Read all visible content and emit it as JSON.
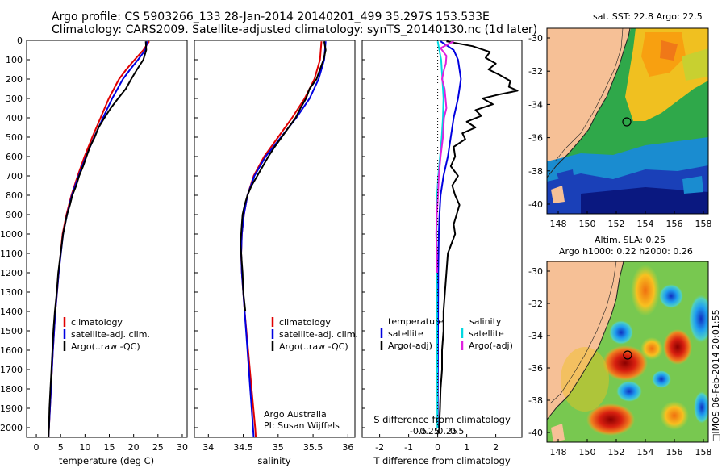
{
  "title": {
    "line1": "Argo profile: CS 5903266_133 28-Jan-2014 20140201_499 35.297S 153.533E",
    "line2": "Climatology: CARS2009. Satellite-adjusted climatology: synTS_20140130.nc (1d later)"
  },
  "panels": {
    "temperature": {
      "xlabel": "temperature (deg C)"
    },
    "salinity": {
      "xlabel": "salinity"
    },
    "difference": {
      "xlabel_top": "S difference from climatology",
      "xlabel_bottom": "T difference from climatology"
    }
  },
  "legend": {
    "climatology": "climatology",
    "satellite": "satellite-adj. clim.",
    "argo": "Argo(..raw -QC)",
    "diff_temperature": "temperature",
    "diff_salinity": "salinity",
    "diff_satellite": "satellite",
    "diff_argo": "Argo(-adj)"
  },
  "credits": {
    "org": "Argo Australia",
    "pi": "PI: Susan Wijffels",
    "timestamp": "□IMOS 06-Feb-2014 20:01:55"
  },
  "maps": {
    "sst": {
      "title": "sat. SST: 22.8  Argo: 22.5"
    },
    "sla": {
      "title1": "Altim. SLA: 0.25",
      "title2": "Argo h1000: 0.22  h2000: 0.26"
    }
  },
  "colors": {
    "climatology": "#e00000",
    "satellite": "#0000e0",
    "argo": "#000000",
    "s_satellite": "#00d8e0",
    "s_argo": "#e020e0",
    "land": "#f6c096"
  },
  "chart_data": [
    {
      "type": "line",
      "panel": "temperature",
      "xlabel": "temperature (deg C)",
      "ylabel": "",
      "xlim": [
        -2,
        31
      ],
      "ylim": [
        2050,
        0
      ],
      "xticks": [
        0,
        5,
        10,
        15,
        20,
        25,
        30
      ],
      "yticks": [
        0,
        100,
        200,
        300,
        400,
        500,
        600,
        700,
        800,
        900,
        1000,
        1100,
        1200,
        1300,
        1400,
        1500,
        1600,
        1700,
        1800,
        1900,
        2000
      ],
      "series": [
        {
          "name": "climatology",
          "color": "#e00000",
          "depth": [
            5,
            50,
            100,
            150,
            200,
            300,
            400,
            500,
            600,
            700,
            800,
            900,
            1000,
            1200,
            1400,
            1600,
            1800,
            2000,
            2050
          ],
          "values": [
            23.2,
            22.0,
            20.2,
            18.5,
            17.0,
            14.9,
            13.2,
            11.5,
            9.9,
            8.5,
            7.2,
            6.2,
            5.4,
            4.6,
            3.9,
            3.4,
            3.0,
            2.6,
            2.5
          ]
        },
        {
          "name": "satellite-adj. clim.",
          "color": "#0000e0",
          "depth": [
            5,
            50,
            100,
            150,
            200,
            300,
            400,
            500,
            600,
            700,
            800,
            900,
            1000,
            1200,
            1400,
            1600,
            1800,
            2000,
            2050
          ],
          "values": [
            22.8,
            22.4,
            20.9,
            19.3,
            17.8,
            15.6,
            13.7,
            11.9,
            10.2,
            8.7,
            7.3,
            6.3,
            5.5,
            4.6,
            3.9,
            3.4,
            3.0,
            2.6,
            2.5
          ]
        },
        {
          "name": "Argo(..raw -QC)",
          "color": "#000000",
          "depth": [
            5,
            50,
            100,
            150,
            200,
            250,
            300,
            350,
            400,
            450,
            500,
            550,
            600,
            650,
            700,
            750,
            800,
            850,
            900,
            950,
            1000,
            1100,
            1200,
            1300,
            1400,
            1500,
            1600,
            1700,
            1800,
            1900,
            2000,
            2050
          ],
          "values": [
            22.5,
            22.6,
            22.0,
            20.7,
            19.5,
            18.4,
            16.8,
            15.3,
            14.0,
            12.8,
            12.0,
            11.0,
            10.3,
            9.6,
            8.8,
            8.2,
            7.4,
            6.9,
            6.3,
            5.9,
            5.5,
            5.0,
            4.5,
            4.2,
            3.8,
            3.5,
            3.3,
            3.1,
            2.9,
            2.7,
            2.6,
            2.5
          ]
        }
      ]
    },
    {
      "type": "line",
      "panel": "salinity",
      "xlabel": "salinity",
      "ylabel": "",
      "xlim": [
        33.8,
        36.1
      ],
      "ylim": [
        2050,
        0
      ],
      "xticks": [
        34,
        34.5,
        35,
        35.5,
        36
      ],
      "series": [
        {
          "name": "climatology",
          "color": "#e00000",
          "depth": [
            5,
            100,
            200,
            300,
            400,
            500,
            600,
            700,
            800,
            900,
            1000,
            1100,
            1200,
            1400,
            1600,
            1800,
            2000,
            2050
          ],
          "values": [
            35.62,
            35.6,
            35.52,
            35.38,
            35.2,
            35.0,
            34.8,
            34.65,
            34.56,
            34.51,
            34.48,
            34.47,
            34.48,
            34.52,
            34.57,
            34.62,
            34.67,
            34.68
          ]
        },
        {
          "name": "satellite-adj. clim.",
          "color": "#0000e0",
          "depth": [
            5,
            100,
            200,
            300,
            400,
            500,
            600,
            700,
            800,
            900,
            1000,
            1100,
            1200,
            1400,
            1600,
            1800,
            2000,
            2050
          ],
          "values": [
            35.68,
            35.66,
            35.58,
            35.45,
            35.26,
            35.04,
            34.82,
            34.66,
            34.56,
            34.51,
            34.48,
            34.47,
            34.48,
            34.52,
            34.56,
            34.6,
            34.64,
            34.65
          ]
        },
        {
          "name": "Argo(..raw -QC)",
          "color": "#000000",
          "depth": [
            5,
            50,
            100,
            150,
            200,
            250,
            300,
            350,
            400,
            450,
            500,
            550,
            600,
            650,
            700,
            750,
            800,
            850,
            900,
            950,
            1000,
            1050,
            1100,
            1150,
            1200,
            1300,
            1400
          ],
          "values": [
            35.66,
            35.68,
            35.65,
            35.6,
            35.55,
            35.45,
            35.4,
            35.32,
            35.25,
            35.15,
            35.05,
            34.95,
            34.86,
            34.78,
            34.7,
            34.62,
            34.56,
            34.52,
            34.49,
            34.48,
            34.47,
            34.46,
            34.47,
            34.48,
            34.49,
            34.5,
            34.53
          ]
        }
      ]
    },
    {
      "type": "line",
      "panel": "difference",
      "xlabel": "T difference from climatology",
      "ylabel": "",
      "xlim": [
        -2.6,
        2.9
      ],
      "ylim": [
        2050,
        0
      ],
      "xticks": [
        -2,
        -1,
        0,
        1,
        2
      ],
      "xticks_top": [
        -0.5,
        -0.25,
        0,
        0.25,
        0.5
      ],
      "series": [
        {
          "name": "temperature satellite",
          "color": "#0000e0",
          "depth": [
            5,
            50,
            100,
            150,
            200,
            300,
            400,
            500,
            600,
            700,
            800,
            900,
            1000,
            1200,
            1500,
            2000
          ],
          "values": [
            0.1,
            0.55,
            0.7,
            0.75,
            0.8,
            0.7,
            0.55,
            0.45,
            0.35,
            0.2,
            0.1,
            0.06,
            0.04,
            0.02,
            0.01,
            0.0
          ]
        },
        {
          "name": "temperature Argo(-adj)",
          "color": "#000000",
          "depth": [
            5,
            30,
            60,
            90,
            120,
            150,
            180,
            210,
            240,
            260,
            280,
            300,
            330,
            360,
            390,
            420,
            450,
            480,
            510,
            550,
            600,
            650,
            700,
            750,
            800,
            850,
            900,
            950,
            1000,
            1100,
            1200,
            1300,
            1400,
            1500,
            1600,
            1700,
            1800,
            1900,
            2000
          ],
          "values": [
            0.3,
            1.2,
            1.8,
            1.65,
            2.0,
            1.75,
            2.15,
            2.5,
            2.45,
            2.75,
            2.1,
            1.55,
            1.9,
            1.3,
            1.5,
            1.0,
            1.3,
            0.85,
            0.95,
            0.55,
            0.6,
            0.45,
            0.7,
            0.5,
            0.6,
            0.75,
            0.65,
            0.55,
            0.6,
            0.35,
            0.3,
            0.25,
            0.2,
            0.2,
            0.15,
            0.15,
            0.1,
            0.08,
            0.05
          ]
        },
        {
          "name": "salinity satellite",
          "color": "#00d8e0",
          "depth": [
            5,
            100,
            200,
            300,
            400,
            500,
            600,
            700,
            800,
            1000,
            1200,
            1500,
            2000
          ],
          "values": [
            0.0,
            0.12,
            0.16,
            0.2,
            0.18,
            0.14,
            0.08,
            0.02,
            -0.02,
            -0.04,
            -0.03,
            -0.02,
            -0.01
          ]
        },
        {
          "name": "salinity Argo(-adj)",
          "color": "#e020e0",
          "depth": [
            5,
            40,
            80,
            120,
            150,
            200,
            250,
            300,
            350,
            400,
            450,
            500,
            600,
            700,
            800,
            900,
            1000,
            1100,
            1200
          ],
          "values": [
            0.55,
            0.1,
            0.3,
            0.28,
            0.22,
            0.15,
            0.24,
            0.27,
            0.3,
            0.22,
            0.2,
            0.18,
            0.1,
            0.04,
            0.01,
            -0.03,
            -0.05,
            -0.03,
            -0.02
          ]
        }
      ]
    }
  ],
  "map_axes": {
    "lon_ticks": [
      "148",
      "150",
      "152",
      "154",
      "156",
      "158"
    ],
    "lat_ticks": [
      "-30",
      "-32",
      "-34",
      "-36",
      "-38",
      "-40"
    ]
  }
}
